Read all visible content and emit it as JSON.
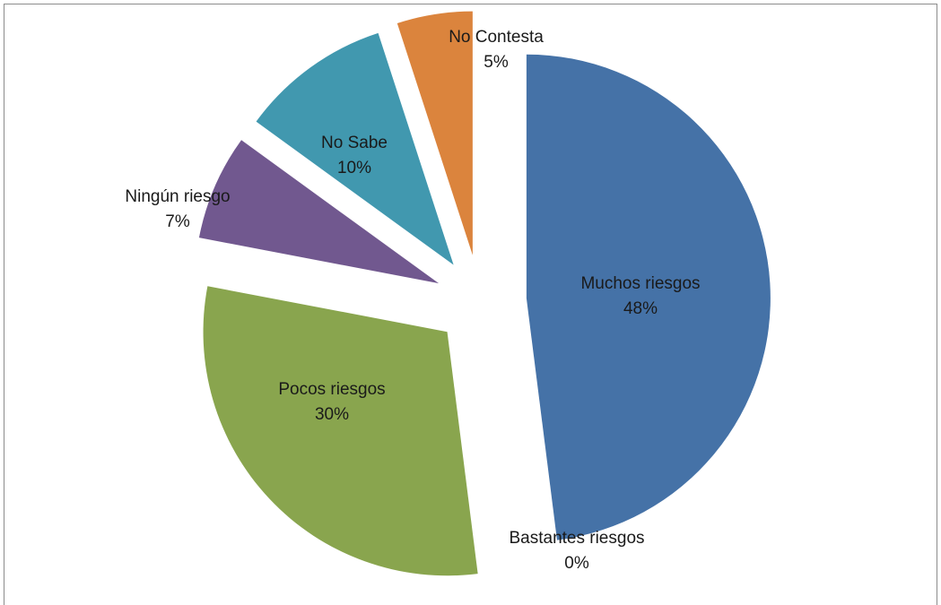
{
  "chart_data": {
    "type": "pie",
    "title": "",
    "categories": [
      "Muchos riesgos",
      "Bastantes riesgos",
      "Pocos riesgos",
      "Ningún riesgo",
      "No Sabe",
      "No Contesta"
    ],
    "values": [
      48,
      0,
      30,
      7,
      10,
      5
    ],
    "value_labels": [
      "48%",
      "0%",
      "30%",
      "7%",
      "10%",
      "5%"
    ],
    "colors": [
      "#4572A7",
      "#AA4643",
      "#89A54E",
      "#71588F",
      "#4198AF",
      "#DB843D"
    ],
    "exploded": true,
    "legend": "none"
  }
}
